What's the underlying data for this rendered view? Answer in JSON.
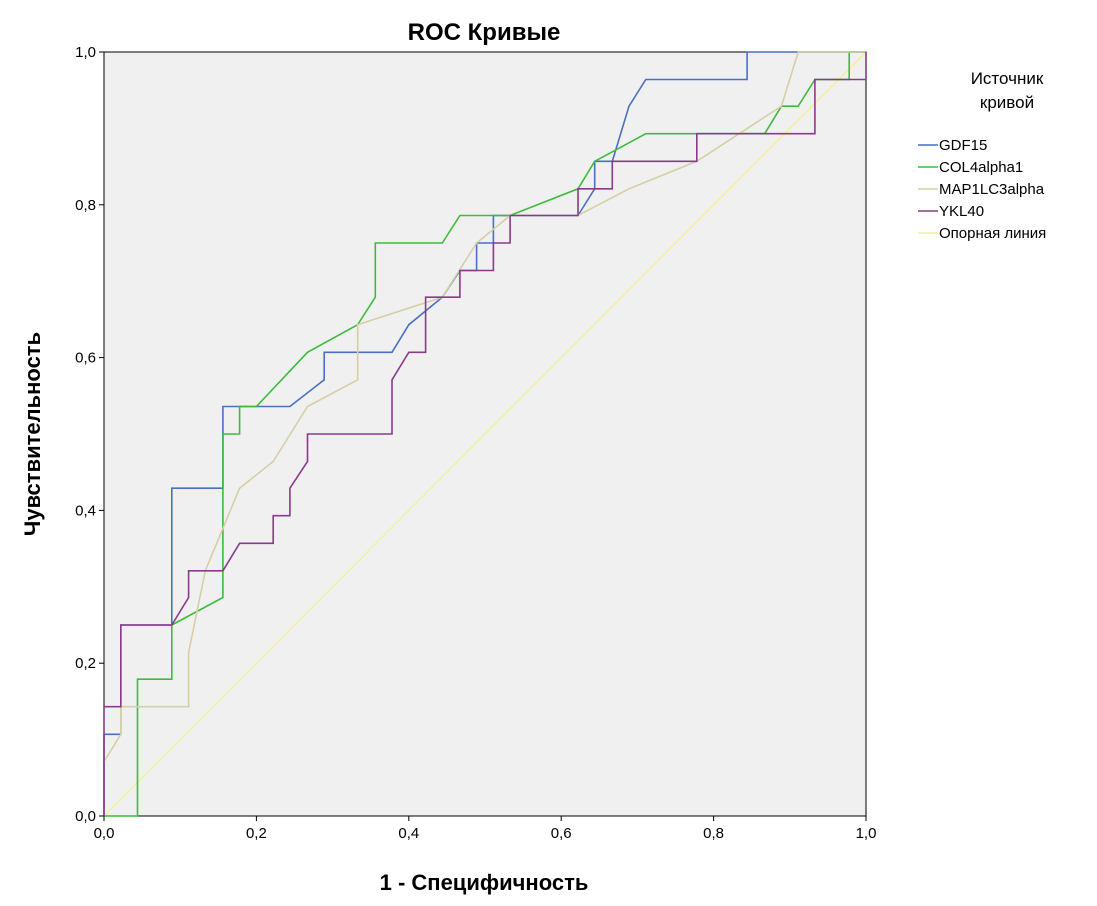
{
  "chart_data": {
    "type": "line",
    "title": "ROC Кривые",
    "xlabel": "1 - Специфичность",
    "ylabel": "Чувствительность",
    "xlim": [
      0,
      1
    ],
    "ylim": [
      0,
      1
    ],
    "x_ticks": [
      "0,0",
      "0,2",
      "0,4",
      "0,6",
      "0,8",
      "1,0"
    ],
    "y_ticks": [
      "0,0",
      "0,2",
      "0,4",
      "0,6",
      "0,8",
      "1,0"
    ],
    "grid": false,
    "plot_background": "#f0f0f0",
    "legend": {
      "title_lines": [
        "Источник",
        "кривой"
      ],
      "placement": "right"
    },
    "series": [
      {
        "name": "GDF15",
        "color": "#4a6fc4",
        "points": [
          [
            0,
            0
          ],
          [
            0,
            0.107
          ],
          [
            0.022,
            0.107
          ],
          [
            0.022,
            0.25
          ],
          [
            0.089,
            0.25
          ],
          [
            0.089,
            0.429
          ],
          [
            0.156,
            0.429
          ],
          [
            0.156,
            0.536
          ],
          [
            0.244,
            0.536
          ],
          [
            0.289,
            0.571
          ],
          [
            0.289,
            0.607
          ],
          [
            0.378,
            0.607
          ],
          [
            0.4,
            0.643
          ],
          [
            0.444,
            0.679
          ],
          [
            0.467,
            0.714
          ],
          [
            0.489,
            0.714
          ],
          [
            0.489,
            0.75
          ],
          [
            0.511,
            0.75
          ],
          [
            0.511,
            0.786
          ],
          [
            0.622,
            0.786
          ],
          [
            0.644,
            0.821
          ],
          [
            0.644,
            0.857
          ],
          [
            0.667,
            0.857
          ],
          [
            0.689,
            0.929
          ],
          [
            0.711,
            0.964
          ],
          [
            0.844,
            0.964
          ],
          [
            0.844,
            1.0
          ],
          [
            1.0,
            1.0
          ]
        ]
      },
      {
        "name": "COL4alpha1",
        "color": "#3dbb3d",
        "points": [
          [
            0,
            0
          ],
          [
            0.044,
            0
          ],
          [
            0.044,
            0.179
          ],
          [
            0.089,
            0.179
          ],
          [
            0.089,
            0.25
          ],
          [
            0.156,
            0.286
          ],
          [
            0.156,
            0.5
          ],
          [
            0.178,
            0.5
          ],
          [
            0.178,
            0.536
          ],
          [
            0.2,
            0.536
          ],
          [
            0.267,
            0.607
          ],
          [
            0.333,
            0.643
          ],
          [
            0.356,
            0.679
          ],
          [
            0.356,
            0.75
          ],
          [
            0.444,
            0.75
          ],
          [
            0.467,
            0.786
          ],
          [
            0.533,
            0.786
          ],
          [
            0.622,
            0.821
          ],
          [
            0.644,
            0.857
          ],
          [
            0.711,
            0.893
          ],
          [
            0.867,
            0.893
          ],
          [
            0.889,
            0.929
          ],
          [
            0.911,
            0.929
          ],
          [
            0.933,
            0.964
          ],
          [
            0.978,
            0.964
          ],
          [
            0.978,
            1.0
          ],
          [
            1.0,
            1.0
          ]
        ]
      },
      {
        "name": "MAP1LC3alpha",
        "color": "#d6cfa4",
        "points": [
          [
            0,
            0.071
          ],
          [
            0.022,
            0.107
          ],
          [
            0.022,
            0.143
          ],
          [
            0.111,
            0.143
          ],
          [
            0.111,
            0.214
          ],
          [
            0.133,
            0.321
          ],
          [
            0.178,
            0.429
          ],
          [
            0.222,
            0.464
          ],
          [
            0.267,
            0.536
          ],
          [
            0.333,
            0.571
          ],
          [
            0.333,
            0.643
          ],
          [
            0.444,
            0.679
          ],
          [
            0.489,
            0.75
          ],
          [
            0.533,
            0.786
          ],
          [
            0.622,
            0.786
          ],
          [
            0.689,
            0.821
          ],
          [
            0.778,
            0.857
          ],
          [
            0.889,
            0.929
          ],
          [
            0.911,
            1.0
          ],
          [
            1.0,
            1.0
          ]
        ]
      },
      {
        "name": "YKL40",
        "color": "#8a3a8a",
        "points": [
          [
            0,
            0
          ],
          [
            0,
            0.143
          ],
          [
            0.022,
            0.143
          ],
          [
            0.022,
            0.25
          ],
          [
            0.089,
            0.25
          ],
          [
            0.111,
            0.286
          ],
          [
            0.111,
            0.321
          ],
          [
            0.156,
            0.321
          ],
          [
            0.178,
            0.357
          ],
          [
            0.222,
            0.357
          ],
          [
            0.222,
            0.393
          ],
          [
            0.244,
            0.393
          ],
          [
            0.244,
            0.429
          ],
          [
            0.267,
            0.464
          ],
          [
            0.267,
            0.5
          ],
          [
            0.378,
            0.5
          ],
          [
            0.378,
            0.571
          ],
          [
            0.4,
            0.607
          ],
          [
            0.422,
            0.607
          ],
          [
            0.422,
            0.679
          ],
          [
            0.467,
            0.679
          ],
          [
            0.467,
            0.714
          ],
          [
            0.511,
            0.714
          ],
          [
            0.511,
            0.75
          ],
          [
            0.533,
            0.75
          ],
          [
            0.533,
            0.786
          ],
          [
            0.622,
            0.786
          ],
          [
            0.622,
            0.821
          ],
          [
            0.667,
            0.821
          ],
          [
            0.667,
            0.857
          ],
          [
            0.778,
            0.857
          ],
          [
            0.778,
            0.893
          ],
          [
            0.933,
            0.893
          ],
          [
            0.933,
            0.964
          ],
          [
            1.0,
            0.964
          ],
          [
            1.0,
            1.0
          ]
        ]
      },
      {
        "name": "Опорная линия",
        "color": "#f5f0a0",
        "points": [
          [
            0,
            0
          ],
          [
            1,
            1
          ]
        ]
      }
    ]
  }
}
